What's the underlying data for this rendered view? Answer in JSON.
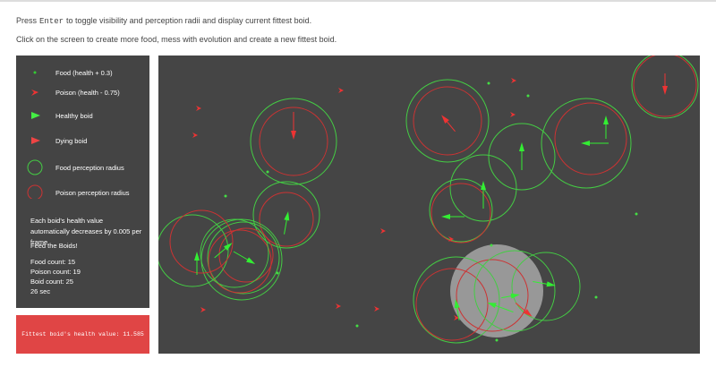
{
  "instructions": [
    {
      "before": "Press",
      "key": "Enter",
      "after": "to toggle visibility and perception radii and display current fittest boid."
    },
    {
      "before": "Click on the screen to create more food, mess with evolution and create a new fittest boid."
    }
  ],
  "legend": [
    "Food (health + 0.3)",
    "Poison (health - 0.75)",
    "Healthy boid",
    "Dying boid",
    "Food perception radius",
    "Poison perception radius"
  ],
  "info": [
    "Each boid's health value automatically decreases by 0.005 per frame.",
    "Feed the Boids!"
  ],
  "stats": [
    "Food count: 15",
    "Poison count: 19",
    "Boid count: 25",
    "26 sec"
  ],
  "status": "Fittest boid's health value: 11.585"
}
